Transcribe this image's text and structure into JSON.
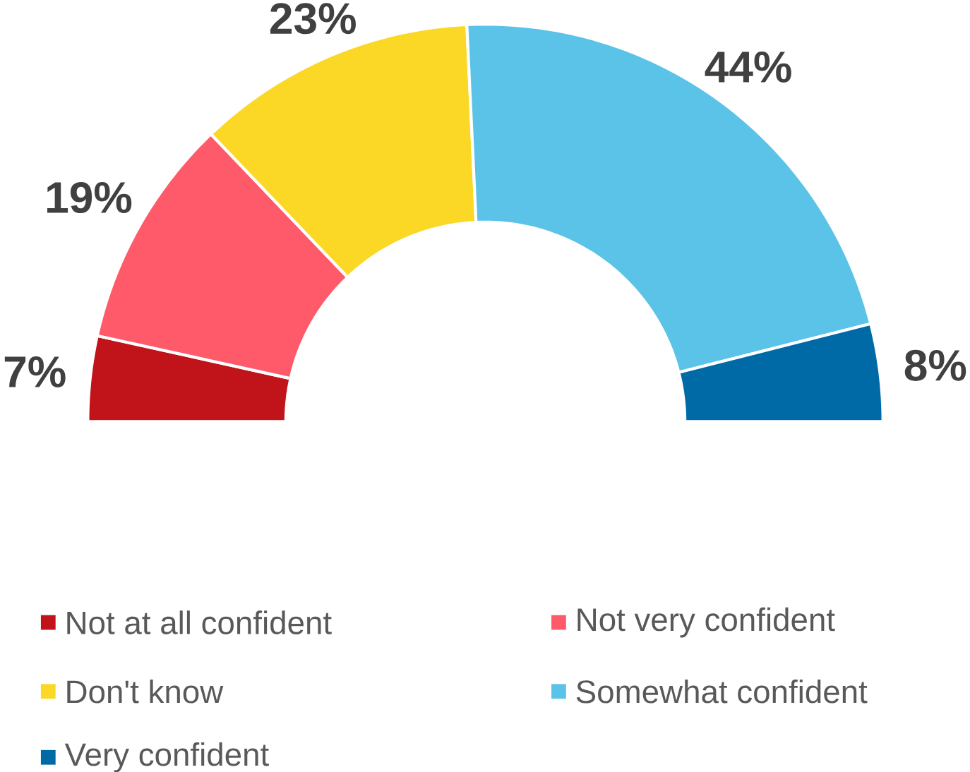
{
  "chart_data": {
    "type": "donut",
    "categories": [
      "Not at all confident",
      "Not very confident",
      "Don't know",
      "Somewhat confident",
      "Very confident"
    ],
    "values": [
      7,
      19,
      23,
      44,
      8
    ],
    "value_labels": [
      "7%",
      "19%",
      "23%",
      "44%",
      "8%"
    ],
    "colors": [
      "#c0141a",
      "#ff5a6a",
      "#fcd826",
      "#5bc3e8",
      "#006aa7"
    ],
    "legend": "bottom"
  }
}
